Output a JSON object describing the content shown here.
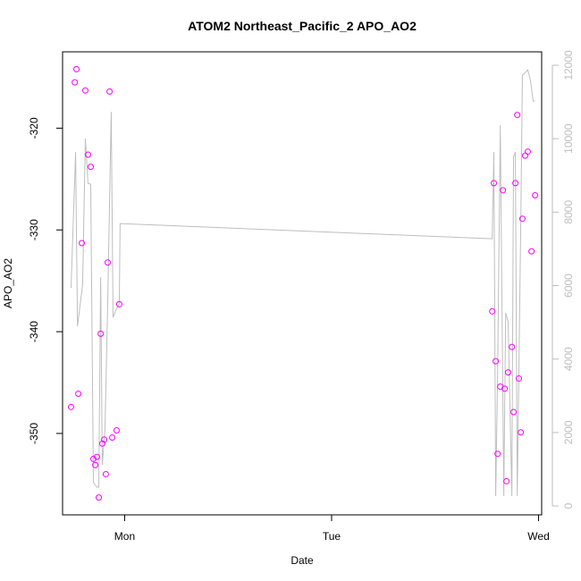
{
  "chart_data": {
    "type": "scatter",
    "title": "ATOM2 Northeast_Pacific_2 APO_AO2",
    "xlabel": "Date",
    "ylabel": "APO_AO2",
    "xlim": [
      -0.3,
      2.015
    ],
    "xticks": [
      {
        "value": 0,
        "label": "Mon"
      },
      {
        "value": 1,
        "label": "Tue"
      },
      {
        "value": 2,
        "label": "Wed"
      }
    ],
    "ylim": [
      -358,
      -312.5
    ],
    "yticks": [
      -350,
      -340,
      -330,
      -320
    ],
    "y2lim": [
      -243,
      12365
    ],
    "y2ticks": [
      0,
      2000,
      4000,
      6000,
      8000,
      10000,
      12000
    ],
    "series": [
      {
        "type": "line",
        "axis": "y2",
        "color": "#bebebe",
        "x": [
          -0.259,
          -0.237,
          -0.228,
          -0.203,
          -0.19,
          -0.177,
          -0.164,
          -0.151,
          -0.134,
          -0.125,
          -0.116,
          -0.108,
          -0.095,
          -0.082,
          -0.065,
          -0.056,
          -0.039,
          -0.026,
          -0.022,
          1.776,
          1.784,
          1.793,
          1.802,
          1.815,
          1.832,
          1.841,
          1.853,
          1.871,
          1.879,
          1.888,
          1.897,
          1.914,
          1.922,
          1.94,
          1.948,
          1.961,
          1.974,
          1.983
        ],
        "values": [
          5937,
          9635,
          4891,
          6034,
          10000,
          8783,
          8759,
          633,
          511,
          511,
          6229,
          1119,
          2092,
          5499,
          10730,
          5134,
          5377,
          5499,
          7689,
          7275,
          9635,
          268,
          3552,
          10365,
          268,
          5255,
          5012,
          268,
          9513,
          9635,
          268,
          7689,
          11727,
          11825,
          11873,
          11582,
          11022,
          11022
        ]
      },
      {
        "type": "scatter",
        "color": "#ff00ff",
        "x": [
          -0.259,
          -0.241,
          -0.233,
          -0.224,
          -0.207,
          -0.19,
          -0.177,
          -0.164,
          -0.151,
          -0.142,
          -0.134,
          -0.125,
          -0.116,
          -0.108,
          -0.099,
          -0.091,
          -0.082,
          -0.073,
          -0.06,
          -0.039,
          -0.026,
          1.776,
          1.784,
          1.793,
          1.802,
          1.815,
          1.828,
          1.836,
          1.845,
          1.853,
          1.871,
          1.879,
          1.888,
          1.897,
          1.905,
          1.914,
          1.922,
          1.935,
          1.948,
          1.966,
          1.983
        ],
        "values": [
          -347.4,
          -315.5,
          -314.2,
          -346.1,
          -331.3,
          -316.3,
          -322.6,
          -323.8,
          -352.5,
          -353.1,
          -352.3,
          -356.3,
          -340.2,
          -351.0,
          -350.6,
          -354.0,
          -333.2,
          -316.4,
          -350.4,
          -349.7,
          -337.3,
          -338.0,
          -325.4,
          -342.9,
          -352.0,
          -345.4,
          -326.1,
          -345.6,
          -354.7,
          -344.0,
          -341.5,
          -347.9,
          -325.4,
          -318.7,
          -344.6,
          -349.9,
          -328.9,
          -322.7,
          -322.3,
          -332.1,
          -326.6
        ]
      }
    ]
  }
}
